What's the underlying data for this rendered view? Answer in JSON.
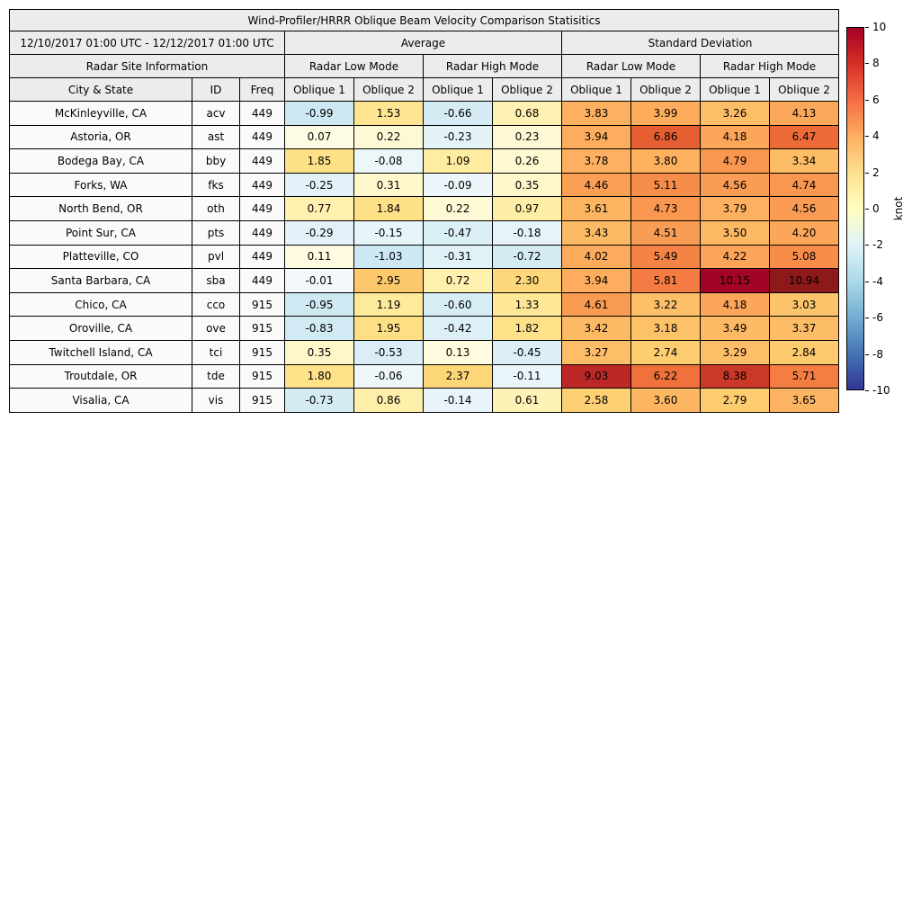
{
  "title": "Wind-Profiler/HRRR Oblique Beam Velocity Comparison Statisitics",
  "header": {
    "date_range": "12/10/2017 01:00 UTC - 12/12/2017 01:00 UTC",
    "average_label": "Average",
    "std_label": "Standard Deviation",
    "site_info_label": "Radar Site Information",
    "mode_labels": [
      "Radar Low Mode",
      "Radar High Mode",
      "Radar Low Mode",
      "Radar High Mode"
    ],
    "column_labels": [
      "City & State",
      "ID",
      "Freq",
      "Oblique 1",
      "Oblique 2",
      "Oblique 1",
      "Oblique 2",
      "Oblique 1",
      "Oblique 2",
      "Oblique 1",
      "Oblique 2"
    ]
  },
  "chart_data": {
    "type": "heatmap",
    "title": "Wind-Profiler/HRRR Oblique Beam Velocity Comparison Statisitics",
    "value_unit": "knot",
    "value_range": [
      -10,
      10
    ],
    "value_columns": [
      "Average Radar Low Mode Oblique 1",
      "Average Radar Low Mode Oblique 2",
      "Average Radar High Mode Oblique 1",
      "Average Radar High Mode Oblique 2",
      "Standard Deviation Radar Low Mode Oblique 1",
      "Standard Deviation Radar Low Mode Oblique 2",
      "Standard Deviation Radar High Mode Oblique 1",
      "Standard Deviation Radar High Mode Oblique 2"
    ],
    "rows": [
      {
        "city_state": "McKinleyville, CA",
        "id": "acv",
        "freq": "449",
        "values": [
          -0.99,
          1.53,
          -0.66,
          0.68,
          3.83,
          3.99,
          3.26,
          4.13
        ]
      },
      {
        "city_state": "Astoria, OR",
        "id": "ast",
        "freq": "449",
        "values": [
          0.07,
          0.22,
          -0.23,
          0.23,
          3.94,
          6.86,
          4.18,
          6.47
        ]
      },
      {
        "city_state": "Bodega Bay, CA",
        "id": "bby",
        "freq": "449",
        "values": [
          1.85,
          -0.08,
          1.09,
          0.26,
          3.78,
          3.8,
          4.79,
          3.34
        ]
      },
      {
        "city_state": "Forks, WA",
        "id": "fks",
        "freq": "449",
        "values": [
          -0.25,
          0.31,
          -0.09,
          0.35,
          4.46,
          5.11,
          4.56,
          4.74
        ]
      },
      {
        "city_state": "North Bend, OR",
        "id": "oth",
        "freq": "449",
        "values": [
          0.77,
          1.84,
          0.22,
          0.97,
          3.61,
          4.73,
          3.79,
          4.56
        ]
      },
      {
        "city_state": "Point Sur, CA",
        "id": "pts",
        "freq": "449",
        "values": [
          -0.29,
          -0.15,
          -0.47,
          -0.18,
          3.43,
          4.51,
          3.5,
          4.2
        ]
      },
      {
        "city_state": "Platteville, CO",
        "id": "pvl",
        "freq": "449",
        "values": [
          0.11,
          -1.03,
          -0.31,
          -0.72,
          4.02,
          5.49,
          4.22,
          5.08
        ]
      },
      {
        "city_state": "Santa Barbara, CA",
        "id": "sba",
        "freq": "449",
        "values": [
          -0.01,
          2.95,
          0.72,
          2.3,
          3.94,
          5.81,
          10.15,
          10.94
        ]
      },
      {
        "city_state": "Chico, CA",
        "id": "cco",
        "freq": "915",
        "values": [
          -0.95,
          1.19,
          -0.6,
          1.33,
          4.61,
          3.22,
          4.18,
          3.03
        ]
      },
      {
        "city_state": "Oroville, CA",
        "id": "ove",
        "freq": "915",
        "values": [
          -0.83,
          1.95,
          -0.42,
          1.82,
          3.42,
          3.18,
          3.49,
          3.37
        ]
      },
      {
        "city_state": "Twitchell Island, CA",
        "id": "tci",
        "freq": "915",
        "values": [
          0.35,
          -0.53,
          0.13,
          -0.45,
          3.27,
          2.74,
          3.29,
          2.84
        ]
      },
      {
        "city_state": "Troutdale, OR",
        "id": "tde",
        "freq": "915",
        "values": [
          1.8,
          -0.06,
          2.37,
          -0.11,
          9.03,
          6.22,
          8.38,
          5.71
        ]
      },
      {
        "city_state": "Visalia, CA",
        "id": "vis",
        "freq": "915",
        "values": [
          -0.73,
          0.86,
          -0.14,
          0.61,
          2.58,
          3.6,
          2.79,
          3.65
        ]
      }
    ]
  },
  "colorbar": {
    "label": "knot",
    "min": -10,
    "max": 10,
    "ticks": [
      10,
      8,
      6,
      4,
      2,
      0,
      -2,
      -4,
      -6,
      -8,
      -10
    ],
    "gradient_stops": [
      "#a50026",
      "#d73027",
      "#f46d43",
      "#fdae61",
      "#fee090",
      "#ffffbf",
      "#e0f3f8",
      "#abd9e9",
      "#74add1",
      "#4575b4",
      "#313695"
    ]
  },
  "colors": {
    "header_bg": "#ececec",
    "site_cell_bg": "#fafafa",
    "border": "#000000",
    "scale": [
      [
        -10,
        "#313695"
      ],
      [
        -8,
        "#4575b4"
      ],
      [
        -6,
        "#74add1"
      ],
      [
        -4,
        "#9fd0e4"
      ],
      [
        -2,
        "#c3e3ef"
      ],
      [
        -1,
        "#cde8f2"
      ],
      [
        -0.5,
        "#daeef6"
      ],
      [
        -0.15,
        "#e7f4f9"
      ],
      [
        -0.01,
        "#f3f9fb"
      ],
      [
        0.01,
        "#fffdea"
      ],
      [
        0.3,
        "#fef8cd"
      ],
      [
        0.7,
        "#fef1b1"
      ],
      [
        1.2,
        "#feea9b"
      ],
      [
        1.9,
        "#fee085"
      ],
      [
        2.6,
        "#fdd172"
      ],
      [
        3.2,
        "#fdc068"
      ],
      [
        3.9,
        "#fdae5e"
      ],
      [
        4.6,
        "#fa9b52"
      ],
      [
        5.2,
        "#f78a48"
      ],
      [
        5.9,
        "#f37940"
      ],
      [
        6.5,
        "#ed6a38"
      ],
      [
        7,
        "#e35b31"
      ],
      [
        8,
        "#d2432a"
      ],
      [
        9,
        "#bc2926"
      ],
      [
        10,
        "#a50026"
      ],
      [
        11,
        "#8c1b1a"
      ]
    ]
  }
}
